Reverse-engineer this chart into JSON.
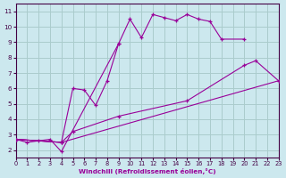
{
  "xlabel": "Windchill (Refroidissement éolien,°C)",
  "xlim": [
    0,
    23
  ],
  "ylim": [
    1.5,
    11.5
  ],
  "xticks": [
    0,
    1,
    2,
    3,
    4,
    5,
    6,
    7,
    8,
    9,
    10,
    11,
    12,
    13,
    14,
    15,
    16,
    17,
    18,
    19,
    20,
    21,
    22,
    23
  ],
  "yticks": [
    2,
    3,
    4,
    5,
    6,
    7,
    8,
    9,
    10,
    11
  ],
  "bg_color": "#cce8ee",
  "line_color": "#990099",
  "grid_color": "#aacccc",
  "series": [
    {
      "x": [
        0,
        1,
        2,
        3,
        4,
        9,
        10,
        11,
        12,
        13,
        14,
        15,
        16,
        17,
        18,
        20
      ],
      "y": [
        2.7,
        2.5,
        2.6,
        2.7,
        1.9,
        8.9,
        10.5,
        9.3,
        10.8,
        10.6,
        10.4,
        10.8,
        10.5,
        10.35,
        9.2,
        9.2
      ]
    },
    {
      "x": [
        0,
        4,
        5,
        6,
        7,
        8,
        9
      ],
      "y": [
        2.7,
        2.5,
        6.0,
        5.9,
        4.9,
        6.5,
        8.9
      ]
    },
    {
      "x": [
        0,
        4,
        5,
        9,
        15,
        20,
        21,
        23
      ],
      "y": [
        2.7,
        2.5,
        3.2,
        4.2,
        5.2,
        7.5,
        7.8,
        6.5
      ]
    },
    {
      "x": [
        0,
        4,
        23
      ],
      "y": [
        2.7,
        2.5,
        6.5
      ]
    }
  ]
}
